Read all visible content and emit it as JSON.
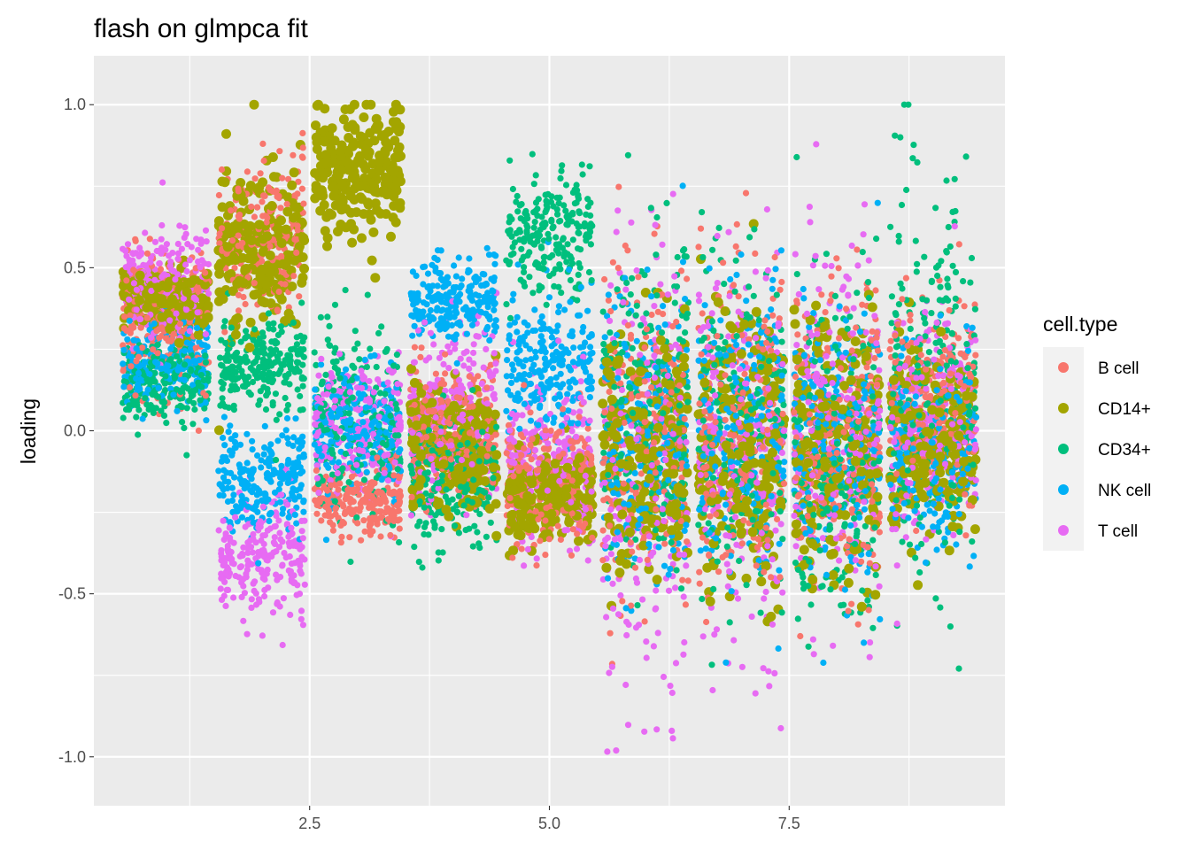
{
  "chart_data": {
    "type": "scatter",
    "title": "flash on glmpca fit",
    "xlabel": "",
    "ylabel": "loading",
    "xlim": [
      0.25,
      9.75
    ],
    "ylim": [
      -1.15,
      1.15
    ],
    "x_ticks": [
      2.5,
      5.0,
      7.5
    ],
    "x_tick_labels": [
      "2.5",
      "5.0",
      "7.5"
    ],
    "y_ticks": [
      -1.0,
      -0.5,
      0.0,
      0.5,
      1.0
    ],
    "y_tick_labels": [
      "-1.0",
      "-0.5",
      "0.0",
      "0.5",
      "1.0"
    ],
    "grid": true,
    "legend": {
      "title": "cell.type",
      "position": "right",
      "entries": [
        {
          "name": "B cell",
          "color": "#F8766D"
        },
        {
          "name": "CD14+",
          "color": "#A3A500"
        },
        {
          "name": "CD34+",
          "color": "#00BF7D"
        },
        {
          "name": "NK cell",
          "color": "#00B0F6"
        },
        {
          "name": "T cell",
          "color": "#E76BF3"
        }
      ]
    },
    "jitter_width": 0.45,
    "factors": [
      1,
      2,
      3,
      4,
      5,
      6,
      7,
      8,
      9
    ],
    "groups": [
      {
        "factor": 1,
        "dists": {
          "B cell": [
            0.35,
            0.1
          ],
          "CD14+": [
            0.4,
            0.05
          ],
          "CD34+": [
            0.15,
            0.06
          ],
          "NK cell": [
            0.22,
            0.07
          ],
          "T cell": [
            0.45,
            0.08
          ]
        }
      },
      {
        "factor": 2,
        "dists": {
          "B cell": [
            0.6,
            0.12
          ],
          "CD14+": [
            0.55,
            0.14
          ],
          "CD34+": [
            0.2,
            0.07
          ],
          "NK cell": [
            -0.15,
            0.08
          ],
          "T cell": [
            -0.38,
            0.09
          ]
        }
      },
      {
        "factor": 3,
        "dists": {
          "B cell": [
            -0.22,
            0.05
          ],
          "CD14+": [
            0.8,
            0.1
          ],
          "CD34+": [
            0.05,
            0.15
          ],
          "NK cell": [
            0.0,
            0.1
          ],
          "T cell": [
            0.02,
            0.1
          ]
        }
      },
      {
        "factor": 4,
        "dists": {
          "B cell": [
            0.0,
            0.1
          ],
          "CD14+": [
            -0.05,
            0.1
          ],
          "CD34+": [
            -0.15,
            0.1
          ],
          "NK cell": [
            0.4,
            0.06
          ],
          "T cell": [
            0.05,
            0.14
          ]
        }
      },
      {
        "factor": 5,
        "dists": {
          "B cell": [
            -0.15,
            0.1
          ],
          "CD14+": [
            -0.2,
            0.07
          ],
          "CD34+": [
            0.6,
            0.1
          ],
          "NK cell": [
            0.2,
            0.1
          ],
          "T cell": [
            -0.1,
            0.12
          ]
        }
      },
      {
        "factor": 6,
        "dists": {
          "B cell": [
            -0.05,
            0.25
          ],
          "CD14+": [
            -0.05,
            0.2
          ],
          "CD34+": [
            0.1,
            0.25
          ],
          "NK cell": [
            -0.05,
            0.22
          ],
          "T cell": [
            -0.1,
            0.35
          ]
        }
      },
      {
        "factor": 7,
        "dists": {
          "B cell": [
            0.0,
            0.25
          ],
          "CD14+": [
            -0.05,
            0.2
          ],
          "CD34+": [
            0.0,
            0.25
          ],
          "NK cell": [
            0.0,
            0.22
          ],
          "T cell": [
            -0.05,
            0.3
          ]
        }
      },
      {
        "factor": 8,
        "dists": {
          "B cell": [
            0.0,
            0.25
          ],
          "CD14+": [
            -0.05,
            0.2
          ],
          "CD34+": [
            -0.1,
            0.25
          ],
          "NK cell": [
            -0.05,
            0.22
          ],
          "T cell": [
            0.0,
            0.28
          ]
        }
      },
      {
        "factor": 9,
        "dists": {
          "B cell": [
            0.1,
            0.15
          ],
          "CD14+": [
            -0.05,
            0.15
          ],
          "CD34+": [
            0.15,
            0.3
          ],
          "NK cell": [
            -0.05,
            0.15
          ],
          "T cell": [
            0.0,
            0.18
          ]
        }
      }
    ],
    "points_per_series": 230
  }
}
